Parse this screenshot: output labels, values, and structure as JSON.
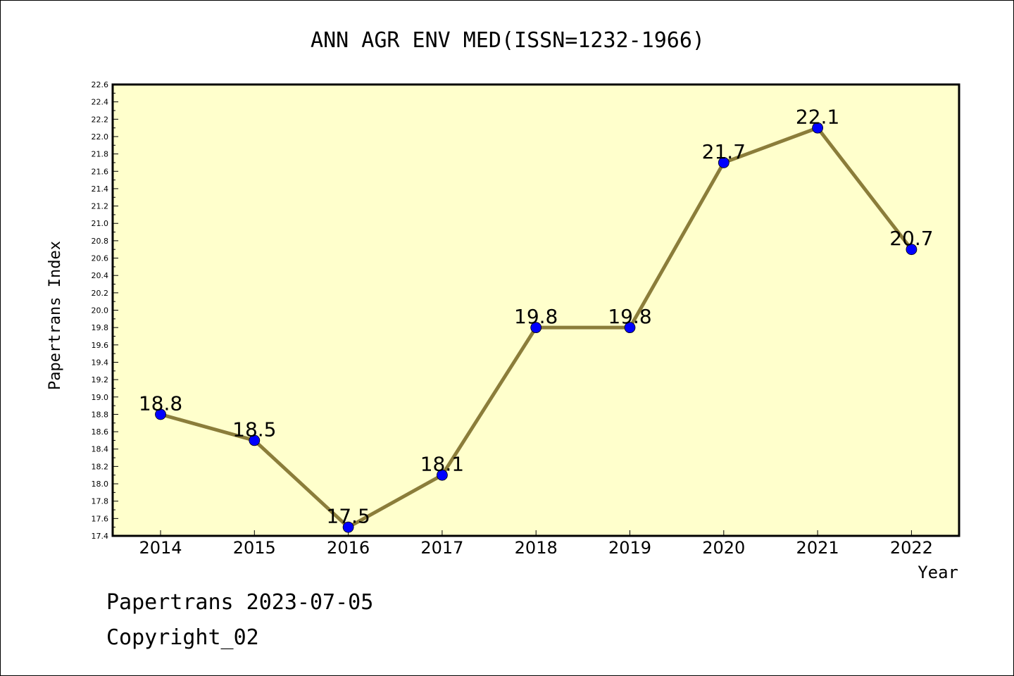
{
  "chart_data": {
    "type": "line",
    "title": "ANN AGR ENV MED(ISSN=1232-1966)",
    "xlabel": "Year",
    "ylabel": "Papertrans Index",
    "categories": [
      "2014",
      "2015",
      "2016",
      "2017",
      "2018",
      "2019",
      "2020",
      "2021",
      "2022"
    ],
    "values": [
      18.8,
      18.5,
      17.5,
      18.1,
      19.8,
      19.8,
      21.7,
      22.1,
      20.7
    ],
    "data_labels": [
      "18.8",
      "18.5",
      "17.5",
      "18.1",
      "19.8",
      "19.8",
      "21.7",
      "22.1",
      "20.7"
    ],
    "ylim": [
      17.4,
      22.6
    ],
    "yticks": [
      "17.4",
      "17.6",
      "17.8",
      "18.0",
      "18.2",
      "18.4",
      "18.6",
      "18.8",
      "19.0",
      "19.2",
      "19.4",
      "19.6",
      "19.8",
      "20.0",
      "20.2",
      "20.4",
      "20.6",
      "20.8",
      "21.0",
      "21.2",
      "21.4",
      "21.6",
      "21.8",
      "22.0",
      "22.2",
      "22.4",
      "22.6"
    ],
    "grid": false,
    "colors": {
      "plot_background": "#ffffcc",
      "line": "#8b7d3a",
      "marker": "#0000ff"
    }
  },
  "footer": {
    "line1": "Papertrans 2023-07-05",
    "line2": "Copyright_02"
  }
}
